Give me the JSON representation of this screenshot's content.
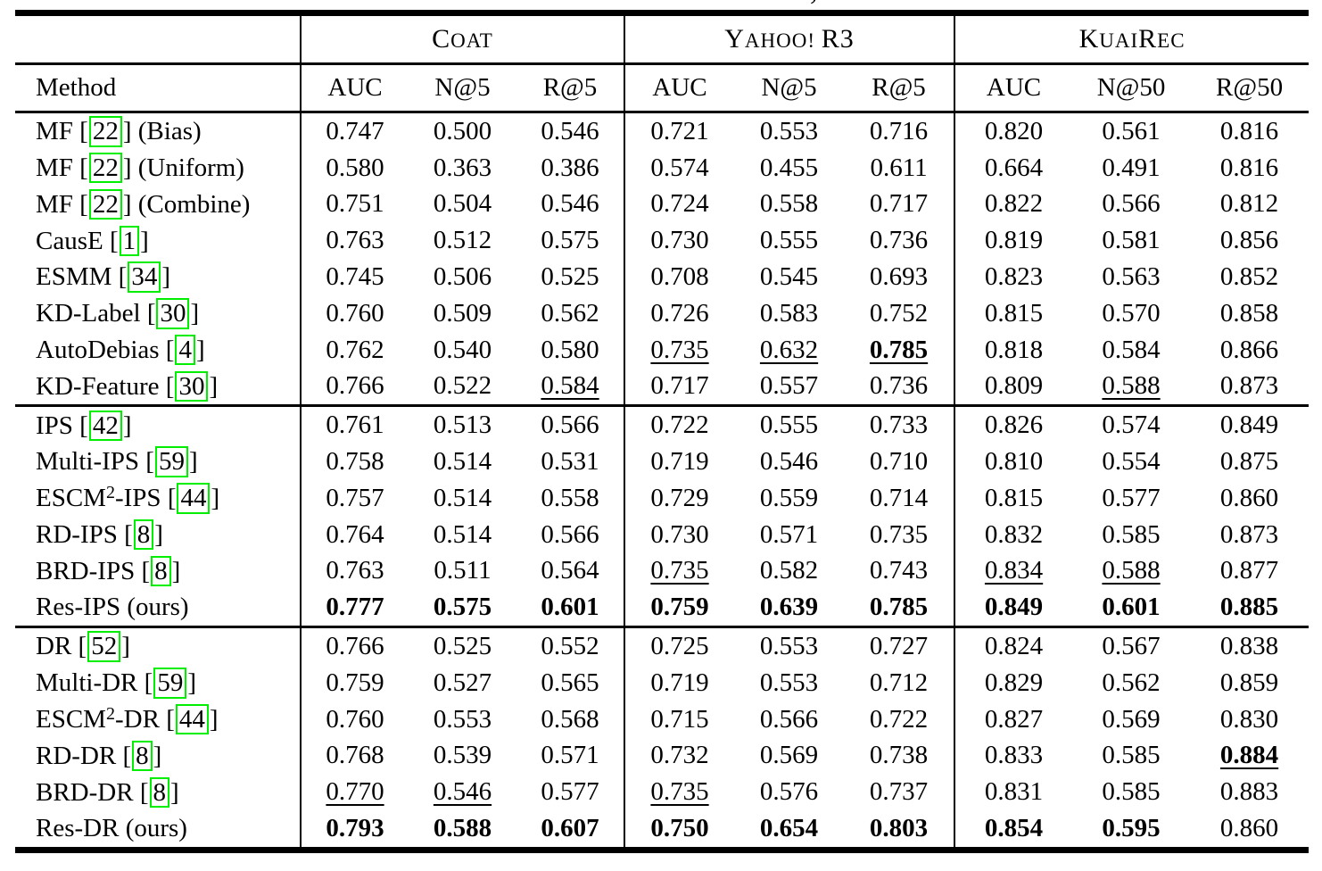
{
  "caption_fragment": ",",
  "colors": {
    "citation_box": "#00ee00"
  },
  "header": {
    "method_label": "Method",
    "datasets": [
      {
        "name": "Coat",
        "parts": [
          [
            "C",
            1
          ],
          [
            "OAT",
            0
          ]
        ],
        "metrics": [
          "AUC",
          "N@5",
          "R@5"
        ]
      },
      {
        "name": "Yahoo! R3",
        "parts": [
          [
            "Y",
            1
          ],
          [
            "AHOO! ",
            0
          ],
          [
            "R3",
            1
          ]
        ],
        "metrics": [
          "AUC",
          "N@5",
          "R@5"
        ]
      },
      {
        "name": "KuaiRec",
        "parts": [
          [
            "K",
            1
          ],
          [
            "UAI",
            0
          ],
          [
            "R",
            1
          ],
          [
            "EC",
            0
          ]
        ],
        "metrics": [
          "AUC",
          "N@50",
          "R@50"
        ]
      }
    ]
  },
  "groups": [
    {
      "rows": [
        {
          "method": {
            "text": "MF",
            "cite": "22",
            "post": " (Bias)"
          },
          "cells": [
            [
              "0.747",
              ""
            ],
            [
              "0.500",
              ""
            ],
            [
              "0.546",
              ""
            ],
            [
              "0.721",
              ""
            ],
            [
              "0.553",
              ""
            ],
            [
              "0.716",
              ""
            ],
            [
              "0.820",
              ""
            ],
            [
              "0.561",
              ""
            ],
            [
              "0.816",
              ""
            ]
          ]
        },
        {
          "method": {
            "text": "MF",
            "cite": "22",
            "post": " (Uniform)"
          },
          "cells": [
            [
              "0.580",
              ""
            ],
            [
              "0.363",
              ""
            ],
            [
              "0.386",
              ""
            ],
            [
              "0.574",
              ""
            ],
            [
              "0.455",
              ""
            ],
            [
              "0.611",
              ""
            ],
            [
              "0.664",
              ""
            ],
            [
              "0.491",
              ""
            ],
            [
              "0.816",
              ""
            ]
          ]
        },
        {
          "method": {
            "text": "MF",
            "cite": "22",
            "post": " (Combine)"
          },
          "cells": [
            [
              "0.751",
              ""
            ],
            [
              "0.504",
              ""
            ],
            [
              "0.546",
              ""
            ],
            [
              "0.724",
              ""
            ],
            [
              "0.558",
              ""
            ],
            [
              "0.717",
              ""
            ],
            [
              "0.822",
              ""
            ],
            [
              "0.566",
              ""
            ],
            [
              "0.812",
              ""
            ]
          ]
        },
        {
          "method": {
            "text": "CausE",
            "cite": "1"
          },
          "cells": [
            [
              "0.763",
              ""
            ],
            [
              "0.512",
              ""
            ],
            [
              "0.575",
              ""
            ],
            [
              "0.730",
              ""
            ],
            [
              "0.555",
              ""
            ],
            [
              "0.736",
              ""
            ],
            [
              "0.819",
              ""
            ],
            [
              "0.581",
              ""
            ],
            [
              "0.856",
              ""
            ]
          ]
        },
        {
          "method": {
            "text": "ESMM",
            "cite": "34"
          },
          "cells": [
            [
              "0.745",
              ""
            ],
            [
              "0.506",
              ""
            ],
            [
              "0.525",
              ""
            ],
            [
              "0.708",
              ""
            ],
            [
              "0.545",
              ""
            ],
            [
              "0.693",
              ""
            ],
            [
              "0.823",
              ""
            ],
            [
              "0.563",
              ""
            ],
            [
              "0.852",
              ""
            ]
          ]
        },
        {
          "method": {
            "text": "KD-Label",
            "cite": "30"
          },
          "cells": [
            [
              "0.760",
              ""
            ],
            [
              "0.509",
              ""
            ],
            [
              "0.562",
              ""
            ],
            [
              "0.726",
              ""
            ],
            [
              "0.583",
              ""
            ],
            [
              "0.752",
              ""
            ],
            [
              "0.815",
              ""
            ],
            [
              "0.570",
              ""
            ],
            [
              "0.858",
              ""
            ]
          ]
        },
        {
          "method": {
            "text": "AutoDebias",
            "cite": "4"
          },
          "cells": [
            [
              "0.762",
              ""
            ],
            [
              "0.540",
              ""
            ],
            [
              "0.580",
              ""
            ],
            [
              "0.735",
              "u"
            ],
            [
              "0.632",
              "u"
            ],
            [
              "0.785",
              "bu"
            ],
            [
              "0.818",
              ""
            ],
            [
              "0.584",
              ""
            ],
            [
              "0.866",
              ""
            ]
          ]
        },
        {
          "method": {
            "text": "KD-Feature",
            "cite": "30"
          },
          "cells": [
            [
              "0.766",
              ""
            ],
            [
              "0.522",
              ""
            ],
            [
              "0.584",
              "u"
            ],
            [
              "0.717",
              ""
            ],
            [
              "0.557",
              ""
            ],
            [
              "0.736",
              ""
            ],
            [
              "0.809",
              ""
            ],
            [
              "0.588",
              "u"
            ],
            [
              "0.873",
              ""
            ]
          ]
        }
      ]
    },
    {
      "rows": [
        {
          "method": {
            "text": "IPS",
            "cite": "42"
          },
          "cells": [
            [
              "0.761",
              ""
            ],
            [
              "0.513",
              ""
            ],
            [
              "0.566",
              ""
            ],
            [
              "0.722",
              ""
            ],
            [
              "0.555",
              ""
            ],
            [
              "0.733",
              ""
            ],
            [
              "0.826",
              ""
            ],
            [
              "0.574",
              ""
            ],
            [
              "0.849",
              ""
            ]
          ]
        },
        {
          "method": {
            "text": "Multi-IPS",
            "cite": "59"
          },
          "cells": [
            [
              "0.758",
              ""
            ],
            [
              "0.514",
              ""
            ],
            [
              "0.531",
              ""
            ],
            [
              "0.719",
              ""
            ],
            [
              "0.546",
              ""
            ],
            [
              "0.710",
              ""
            ],
            [
              "0.810",
              ""
            ],
            [
              "0.554",
              ""
            ],
            [
              "0.875",
              ""
            ]
          ]
        },
        {
          "method": {
            "text": "ESCM",
            "sup": "2",
            "text2": "-IPS",
            "cite": "44"
          },
          "cells": [
            [
              "0.757",
              ""
            ],
            [
              "0.514",
              ""
            ],
            [
              "0.558",
              ""
            ],
            [
              "0.729",
              ""
            ],
            [
              "0.559",
              ""
            ],
            [
              "0.714",
              ""
            ],
            [
              "0.815",
              ""
            ],
            [
              "0.577",
              ""
            ],
            [
              "0.860",
              ""
            ]
          ]
        },
        {
          "method": {
            "text": "RD-IPS",
            "cite": "8"
          },
          "cells": [
            [
              "0.764",
              ""
            ],
            [
              "0.514",
              ""
            ],
            [
              "0.566",
              ""
            ],
            [
              "0.730",
              ""
            ],
            [
              "0.571",
              ""
            ],
            [
              "0.735",
              ""
            ],
            [
              "0.832",
              ""
            ],
            [
              "0.585",
              ""
            ],
            [
              "0.873",
              ""
            ]
          ]
        },
        {
          "method": {
            "text": "BRD-IPS",
            "cite": "8"
          },
          "cells": [
            [
              "0.763",
              ""
            ],
            [
              "0.511",
              ""
            ],
            [
              "0.564",
              ""
            ],
            [
              "0.735",
              "u"
            ],
            [
              "0.582",
              ""
            ],
            [
              "0.743",
              ""
            ],
            [
              "0.834",
              "u"
            ],
            [
              "0.588",
              "u"
            ],
            [
              "0.877",
              ""
            ]
          ]
        },
        {
          "method": {
            "text": "Res-IPS (ours)"
          },
          "cells": [
            [
              "0.777",
              "b"
            ],
            [
              "0.575",
              "b"
            ],
            [
              "0.601",
              "b"
            ],
            [
              "0.759",
              "b"
            ],
            [
              "0.639",
              "b"
            ],
            [
              "0.785",
              "b"
            ],
            [
              "0.849",
              "b"
            ],
            [
              "0.601",
              "b"
            ],
            [
              "0.885",
              "b"
            ]
          ]
        }
      ]
    },
    {
      "rows": [
        {
          "method": {
            "text": "DR",
            "cite": "52"
          },
          "cells": [
            [
              "0.766",
              ""
            ],
            [
              "0.525",
              ""
            ],
            [
              "0.552",
              ""
            ],
            [
              "0.725",
              ""
            ],
            [
              "0.553",
              ""
            ],
            [
              "0.727",
              ""
            ],
            [
              "0.824",
              ""
            ],
            [
              "0.567",
              ""
            ],
            [
              "0.838",
              ""
            ]
          ]
        },
        {
          "method": {
            "text": "Multi-DR",
            "cite": "59"
          },
          "cells": [
            [
              "0.759",
              ""
            ],
            [
              "0.527",
              ""
            ],
            [
              "0.565",
              ""
            ],
            [
              "0.719",
              ""
            ],
            [
              "0.553",
              ""
            ],
            [
              "0.712",
              ""
            ],
            [
              "0.829",
              ""
            ],
            [
              "0.562",
              ""
            ],
            [
              "0.859",
              ""
            ]
          ]
        },
        {
          "method": {
            "text": "ESCM",
            "sup": "2",
            "text2": "-DR",
            "cite": "44"
          },
          "cells": [
            [
              "0.760",
              ""
            ],
            [
              "0.553",
              ""
            ],
            [
              "0.568",
              ""
            ],
            [
              "0.715",
              ""
            ],
            [
              "0.566",
              ""
            ],
            [
              "0.722",
              ""
            ],
            [
              "0.827",
              ""
            ],
            [
              "0.569",
              ""
            ],
            [
              "0.830",
              ""
            ]
          ]
        },
        {
          "method": {
            "text": "RD-DR",
            "cite": "8"
          },
          "cells": [
            [
              "0.768",
              ""
            ],
            [
              "0.539",
              ""
            ],
            [
              "0.571",
              ""
            ],
            [
              "0.732",
              ""
            ],
            [
              "0.569",
              ""
            ],
            [
              "0.738",
              ""
            ],
            [
              "0.833",
              ""
            ],
            [
              "0.585",
              ""
            ],
            [
              "0.884",
              "bu"
            ]
          ]
        },
        {
          "method": {
            "text": "BRD-DR",
            "cite": "8"
          },
          "cells": [
            [
              "0.770",
              "u"
            ],
            [
              "0.546",
              "u"
            ],
            [
              "0.577",
              ""
            ],
            [
              "0.735",
              "u"
            ],
            [
              "0.576",
              ""
            ],
            [
              "0.737",
              ""
            ],
            [
              "0.831",
              ""
            ],
            [
              "0.585",
              ""
            ],
            [
              "0.883",
              ""
            ]
          ]
        },
        {
          "method": {
            "text": "Res-DR (ours)"
          },
          "cells": [
            [
              "0.793",
              "b"
            ],
            [
              "0.588",
              "b"
            ],
            [
              "0.607",
              "b"
            ],
            [
              "0.750",
              "b"
            ],
            [
              "0.654",
              "b"
            ],
            [
              "0.803",
              "b"
            ],
            [
              "0.854",
              "b"
            ],
            [
              "0.595",
              "b"
            ],
            [
              "0.860",
              ""
            ]
          ]
        }
      ]
    }
  ]
}
